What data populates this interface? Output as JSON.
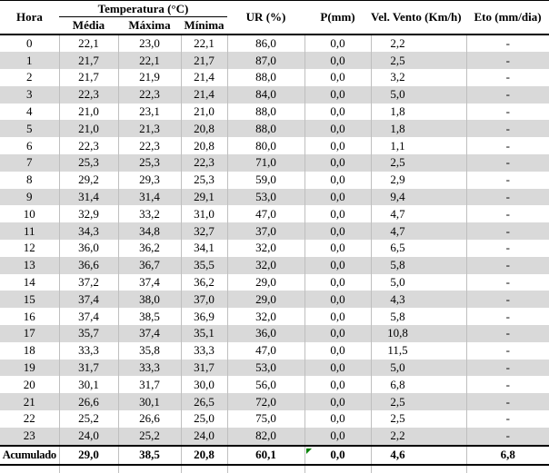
{
  "table": {
    "header": {
      "hora": "Hora",
      "temperatura_group": "Temperatura (°C)",
      "temp_sub": [
        "Média",
        "Máxima",
        "Mínima"
      ],
      "ur": "UR (%)",
      "p": "P(mm)",
      "vel": "Vel. Vento (Km/h)",
      "eto": "Eto (mm/dia)"
    },
    "rows": [
      [
        "0",
        "22,1",
        "23,0",
        "22,1",
        "86,0",
        "0,0",
        "2,2",
        "-"
      ],
      [
        "1",
        "21,7",
        "22,1",
        "21,7",
        "87,0",
        "0,0",
        "2,5",
        "-"
      ],
      [
        "2",
        "21,7",
        "21,9",
        "21,4",
        "88,0",
        "0,0",
        "3,2",
        "-"
      ],
      [
        "3",
        "22,3",
        "22,3",
        "21,4",
        "84,0",
        "0,0",
        "5,0",
        "-"
      ],
      [
        "4",
        "21,0",
        "23,1",
        "21,0",
        "88,0",
        "0,0",
        "1,8",
        "-"
      ],
      [
        "5",
        "21,0",
        "21,3",
        "20,8",
        "88,0",
        "0,0",
        "1,8",
        "-"
      ],
      [
        "6",
        "22,3",
        "22,3",
        "20,8",
        "80,0",
        "0,0",
        "1,1",
        "-"
      ],
      [
        "7",
        "25,3",
        "25,3",
        "22,3",
        "71,0",
        "0,0",
        "2,5",
        "-"
      ],
      [
        "8",
        "29,2",
        "29,3",
        "25,3",
        "59,0",
        "0,0",
        "2,9",
        "-"
      ],
      [
        "9",
        "31,4",
        "31,4",
        "29,1",
        "53,0",
        "0,0",
        "9,4",
        "-"
      ],
      [
        "10",
        "32,9",
        "33,2",
        "31,0",
        "47,0",
        "0,0",
        "4,7",
        "-"
      ],
      [
        "11",
        "34,3",
        "34,8",
        "32,7",
        "37,0",
        "0,0",
        "4,7",
        "-"
      ],
      [
        "12",
        "36,0",
        "36,2",
        "34,1",
        "32,0",
        "0,0",
        "6,5",
        "-"
      ],
      [
        "13",
        "36,6",
        "36,7",
        "35,5",
        "32,0",
        "0,0",
        "5,8",
        "-"
      ],
      [
        "14",
        "37,2",
        "37,4",
        "36,2",
        "29,0",
        "0,0",
        "5,0",
        "-"
      ],
      [
        "15",
        "37,4",
        "38,0",
        "37,0",
        "29,0",
        "0,0",
        "4,3",
        "-"
      ],
      [
        "16",
        "37,4",
        "38,5",
        "36,9",
        "32,0",
        "0,0",
        "5,8",
        "-"
      ],
      [
        "17",
        "35,7",
        "37,4",
        "35,1",
        "36,0",
        "0,0",
        "10,8",
        "-"
      ],
      [
        "18",
        "33,3",
        "35,8",
        "33,3",
        "47,0",
        "0,0",
        "11,5",
        "-"
      ],
      [
        "19",
        "31,7",
        "33,3",
        "31,7",
        "53,0",
        "0,0",
        "5,0",
        "-"
      ],
      [
        "20",
        "30,1",
        "31,7",
        "30,0",
        "56,0",
        "0,0",
        "6,8",
        "-"
      ],
      [
        "21",
        "26,6",
        "30,1",
        "26,5",
        "72,0",
        "0,0",
        "2,5",
        "-"
      ],
      [
        "22",
        "25,2",
        "26,6",
        "25,0",
        "75,0",
        "0,0",
        "2,5",
        "-"
      ],
      [
        "23",
        "24,0",
        "25,2",
        "24,0",
        "82,0",
        "0,0",
        "2,2",
        "-"
      ]
    ],
    "footer": {
      "cells": [
        "Acumulado",
        "29,0",
        "38,5",
        "20,8",
        "60,1",
        "0,0",
        "4,6",
        "6,8"
      ]
    },
    "column_keys": [
      "hora",
      "media",
      "maxima",
      "minima",
      "ur",
      "p",
      "vel",
      "eto"
    ]
  },
  "colors": {
    "stripe": "#d9d9d9",
    "gridline": "#bfbfbf",
    "border": "#000000",
    "error_marker": "#008000",
    "text": "#000000",
    "background": "#ffffff"
  }
}
